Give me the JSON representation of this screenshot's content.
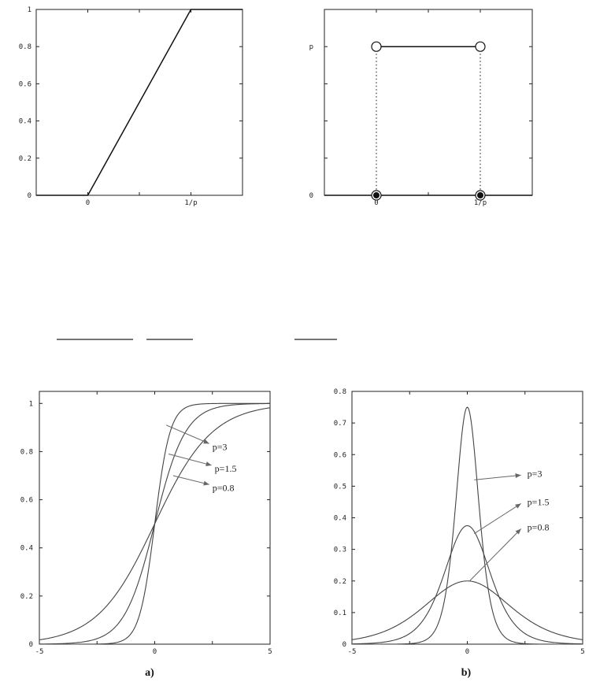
{
  "chart_data": [
    {
      "type": "line",
      "xlim": [
        -0.5,
        1.5
      ],
      "ylim": [
        0,
        1
      ],
      "x_ticks": [
        {
          "value": 0,
          "label": "0"
        },
        {
          "value": 1,
          "label": "1/p"
        }
      ],
      "y_ticks": [
        {
          "value": 0,
          "label": "0"
        },
        {
          "value": 0.2,
          "label": "0.2"
        },
        {
          "value": 0.4,
          "label": "0.4"
        },
        {
          "value": 0.6,
          "label": "0.6"
        },
        {
          "value": 0.8,
          "label": "0.8"
        },
        {
          "value": 1,
          "label": "1"
        }
      ],
      "series": [
        {
          "x": [
            -0.5,
            0,
            1,
            1.5
          ],
          "y": [
            0,
            0,
            1,
            1
          ]
        }
      ],
      "grid": false
    },
    {
      "type": "line",
      "xlim": [
        -0.5,
        1.5
      ],
      "ylim": [
        0,
        1.25
      ],
      "x_ticks": [
        {
          "value": 0,
          "label": "0"
        },
        {
          "value": 1,
          "label": "1/p"
        }
      ],
      "y_ticks": [
        {
          "value": 0,
          "label": "0"
        },
        {
          "value": 1,
          "label": "p"
        }
      ],
      "series": [
        {
          "x": [
            0,
            1
          ],
          "y": [
            1,
            1
          ]
        },
        {
          "x": [
            -0.5,
            1.5
          ],
          "y": [
            0,
            0
          ]
        }
      ],
      "open_points": [
        {
          "x": 0,
          "y": 1
        },
        {
          "x": 1,
          "y": 1
        }
      ],
      "filled_points": [
        {
          "x": 0,
          "y": 0
        },
        {
          "x": 1,
          "y": 0
        }
      ],
      "grid": false
    },
    {
      "type": "line",
      "xlim": [
        -5,
        5
      ],
      "ylim": [
        0,
        1.05
      ],
      "x_ticks": [
        {
          "value": -5,
          "label": "-5"
        },
        {
          "value": 0,
          "label": "0"
        },
        {
          "value": 5,
          "label": "5"
        }
      ],
      "y_ticks": [
        {
          "value": 0,
          "label": "0"
        },
        {
          "value": 0.2,
          "label": "0.2"
        },
        {
          "value": 0.4,
          "label": "0.4"
        },
        {
          "value": 0.6,
          "label": "0.6"
        },
        {
          "value": 0.8,
          "label": "0.8"
        },
        {
          "value": 1,
          "label": "1"
        }
      ],
      "series": [
        {
          "name": "p=3",
          "p": 3,
          "function": "sigmoid"
        },
        {
          "name": "p=1.5",
          "p": 1.5,
          "function": "sigmoid"
        },
        {
          "name": "p=0.8",
          "p": 0.8,
          "function": "sigmoid"
        }
      ],
      "annotations": [
        {
          "label": "p=3",
          "x": 2.5,
          "y": 0.82
        },
        {
          "label": "p=1.5",
          "x": 2.6,
          "y": 0.73
        },
        {
          "label": "p=0.8",
          "x": 2.5,
          "y": 0.65
        }
      ],
      "caption": "a)",
      "grid": false
    },
    {
      "type": "line",
      "xlim": [
        -5,
        5
      ],
      "ylim": [
        0,
        0.8
      ],
      "x_ticks": [
        {
          "value": -5,
          "label": "-5"
        },
        {
          "value": 0,
          "label": "0"
        },
        {
          "value": 5,
          "label": "5"
        }
      ],
      "y_ticks": [
        {
          "value": 0,
          "label": "0"
        },
        {
          "value": 0.1,
          "label": "0.1"
        },
        {
          "value": 0.2,
          "label": "0.2"
        },
        {
          "value": 0.3,
          "label": "0.3"
        },
        {
          "value": 0.4,
          "label": "0.4"
        },
        {
          "value": 0.5,
          "label": "0.5"
        },
        {
          "value": 0.6,
          "label": "0.6"
        },
        {
          "value": 0.7,
          "label": "0.7"
        },
        {
          "value": 0.8,
          "label": "0.8"
        }
      ],
      "series": [
        {
          "name": "p=3",
          "p": 3,
          "function": "sigmoid_derivative"
        },
        {
          "name": "p=1.5",
          "p": 1.5,
          "function": "sigmoid_derivative"
        },
        {
          "name": "p=0.8",
          "p": 0.8,
          "function": "sigmoid_derivative"
        }
      ],
      "annotations": [
        {
          "label": "p=3",
          "x": 2.6,
          "y": 0.54
        },
        {
          "label": "p=1.5",
          "x": 2.6,
          "y": 0.45
        },
        {
          "label": "p=0.8",
          "x": 2.6,
          "y": 0.37
        }
      ],
      "caption": "b)",
      "grid": false
    }
  ],
  "colors": {
    "axis": "#222222",
    "curve": "#111111",
    "smooth_curve": "#444444",
    "arrow": "#666666"
  }
}
